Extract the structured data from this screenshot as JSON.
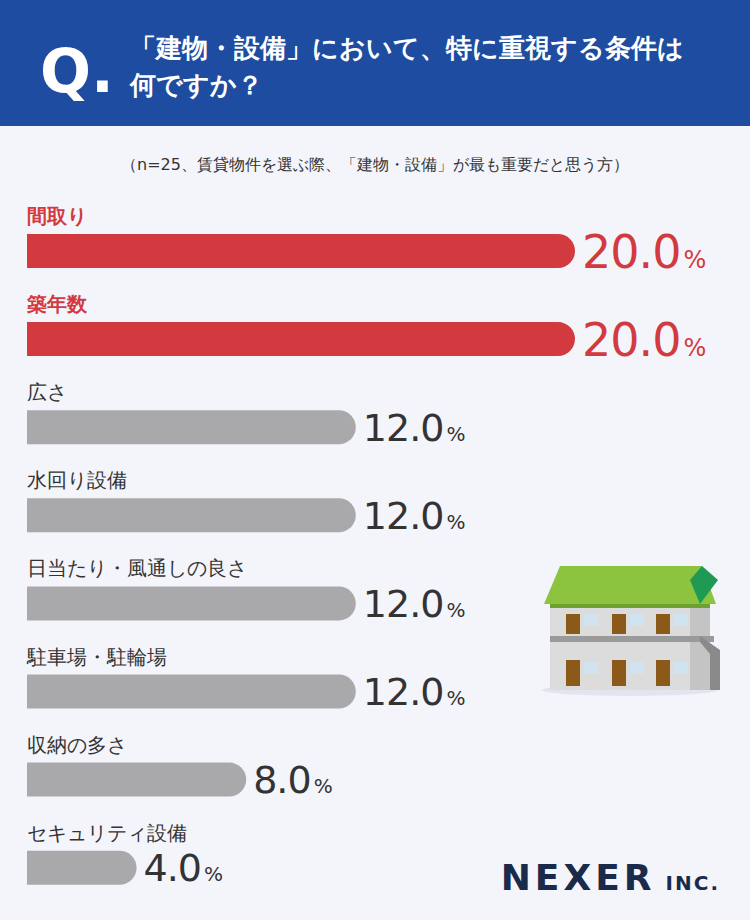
{
  "chart_data": {
    "type": "bar",
    "orientation": "horizontal",
    "title": "「建物・設備」において、特に重視する条件は何ですか？",
    "subtitle": "（n=25、賃貸物件を選ぶ際、「建物・設備」が最も重要だと思う方）",
    "annotations": [
      "Q.",
      "NEXER INC."
    ],
    "categories": [
      "間取り",
      "築年数",
      "広さ",
      "水回り設備",
      "日当たり・風通しの良さ",
      "駐車場・駐輪場",
      "収納の多さ",
      "セキュリティ設備"
    ],
    "values": [
      20.0,
      20.0,
      12.0,
      12.0,
      12.0,
      12.0,
      8.0,
      4.0
    ],
    "value_labels": [
      "20.0%",
      "20.0%",
      "12.0%",
      "12.0%",
      "12.0%",
      "12.0%",
      "8.0%",
      "4.0%"
    ],
    "colors": [
      "#d23a3f",
      "#d23a3f",
      "#a9a9ab",
      "#a9a9ab",
      "#a9a9ab",
      "#a9a9ab",
      "#a9a9ab",
      "#a9a9ab"
    ],
    "xlim": [
      0,
      20
    ],
    "grid": false,
    "tick_labels": false,
    "data_labels": true
  }
}
